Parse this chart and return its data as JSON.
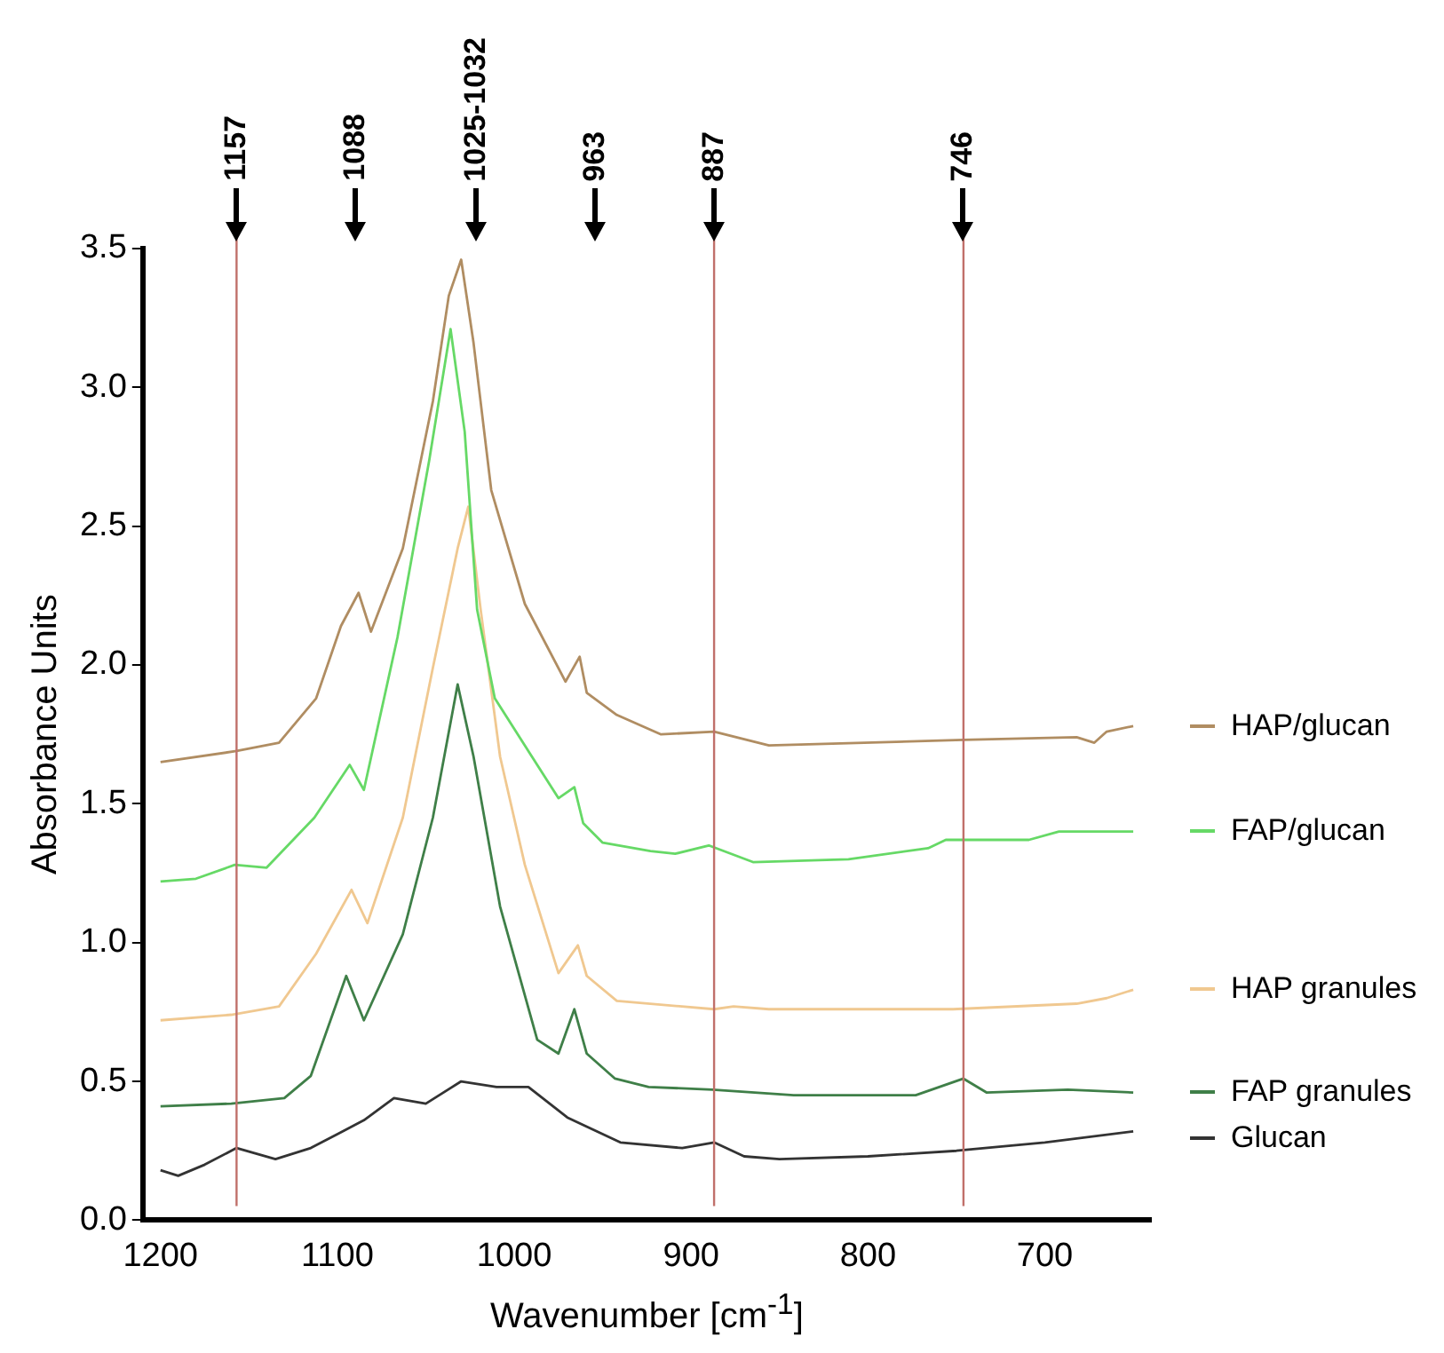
{
  "chart_data": {
    "type": "line",
    "xlabel": "Wavenumber [cm$^{-1}$]",
    "ylabel": "Absorbance Units",
    "xlim": [
      1210,
      640
    ],
    "xticks": [
      1200,
      1100,
      1000,
      900,
      800,
      700
    ],
    "ylim": [
      0,
      3.5
    ],
    "yticks": [
      {
        "value": 0,
        "label": "0.0"
      },
      0.5,
      {
        "value": 1,
        "label": "1.0"
      },
      1.5,
      {
        "value": 2,
        "label": "2.0"
      },
      2.5,
      {
        "value": 3,
        "label": "3.0"
      },
      3.5
    ],
    "grid": false,
    "legend": "right",
    "marker": "none",
    "line_style": "solid",
    "series": [
      {
        "name": "HAP/glucan",
        "color": "#b08d62",
        "x": [
          1200,
          1157,
          1133,
          1112,
          1098,
          1088,
          1081,
          1063,
          1046,
          1037,
          1030,
          1023,
          1013,
          994,
          971,
          963,
          959,
          942,
          917,
          887,
          856,
          746,
          682,
          672,
          665,
          650
        ],
        "values": [
          1.65,
          1.69,
          1.72,
          1.88,
          2.14,
          2.26,
          2.12,
          2.42,
          2.95,
          3.33,
          3.46,
          3.16,
          2.63,
          2.22,
          1.94,
          2.03,
          1.9,
          1.82,
          1.75,
          1.76,
          1.71,
          1.73,
          1.74,
          1.72,
          1.76,
          1.78
        ]
      },
      {
        "name": "FAP/glucan",
        "color": "#66d966",
        "x": [
          1200,
          1180,
          1158,
          1140,
          1113,
          1093,
          1085,
          1066,
          1048,
          1036,
          1028,
          1021,
          1011,
          990,
          975,
          966,
          961,
          950,
          923,
          909,
          890,
          865,
          811,
          766,
          756,
          709,
          692,
          650
        ],
        "values": [
          1.22,
          1.23,
          1.28,
          1.27,
          1.45,
          1.64,
          1.55,
          2.1,
          2.74,
          3.21,
          2.84,
          2.2,
          1.88,
          1.67,
          1.52,
          1.56,
          1.43,
          1.36,
          1.33,
          1.32,
          1.35,
          1.29,
          1.3,
          1.34,
          1.37,
          1.37,
          1.4,
          1.4
        ]
      },
      {
        "name": "HAP granules",
        "color": "#f0c890",
        "x": [
          1200,
          1160,
          1133,
          1112,
          1092,
          1083,
          1063,
          1046,
          1032,
          1026,
          1019,
          1008,
          994,
          975,
          964,
          959,
          942,
          887,
          876,
          856,
          752,
          682,
          665,
          650
        ],
        "values": [
          0.72,
          0.74,
          0.77,
          0.96,
          1.19,
          1.07,
          1.45,
          1.99,
          2.42,
          2.57,
          2.2,
          1.67,
          1.28,
          0.89,
          0.99,
          0.88,
          0.79,
          0.76,
          0.77,
          0.76,
          0.76,
          0.78,
          0.8,
          0.83
        ]
      },
      {
        "name": "FAP granules",
        "color": "#3f7f48",
        "x": [
          1200,
          1160,
          1130,
          1115,
          1105,
          1095,
          1085,
          1063,
          1046,
          1032,
          1023,
          1008,
          987,
          975,
          966,
          959,
          943,
          924,
          888,
          842,
          773,
          746,
          733,
          687,
          650
        ],
        "values": [
          0.41,
          0.42,
          0.44,
          0.52,
          0.7,
          0.88,
          0.72,
          1.03,
          1.45,
          1.93,
          1.67,
          1.13,
          0.65,
          0.6,
          0.76,
          0.6,
          0.51,
          0.48,
          0.47,
          0.45,
          0.45,
          0.51,
          0.46,
          0.47,
          0.46
        ]
      },
      {
        "name": "Glucan",
        "color": "#333333",
        "x": [
          1200,
          1190,
          1175,
          1157,
          1135,
          1115,
          1100,
          1085,
          1068,
          1050,
          1030,
          1010,
          992,
          970,
          940,
          905,
          887,
          870,
          850,
          800,
          750,
          700,
          650
        ],
        "values": [
          0.18,
          0.16,
          0.2,
          0.26,
          0.22,
          0.26,
          0.31,
          0.36,
          0.44,
          0.42,
          0.5,
          0.48,
          0.48,
          0.37,
          0.28,
          0.26,
          0.28,
          0.23,
          0.22,
          0.23,
          0.25,
          0.28,
          0.32
        ]
      }
    ],
    "ref_lines": [
      {
        "axis": "x",
        "value": 1157,
        "label": "1157",
        "color": "#c0706a"
      },
      {
        "axis": "x",
        "value": 887,
        "label": "887",
        "color": "#c0706a"
      },
      {
        "axis": "x",
        "value": 746,
        "label": "746",
        "color": "#c0706a"
      }
    ],
    "annotations": [
      "1088",
      "1025-1032",
      "963"
    ]
  }
}
